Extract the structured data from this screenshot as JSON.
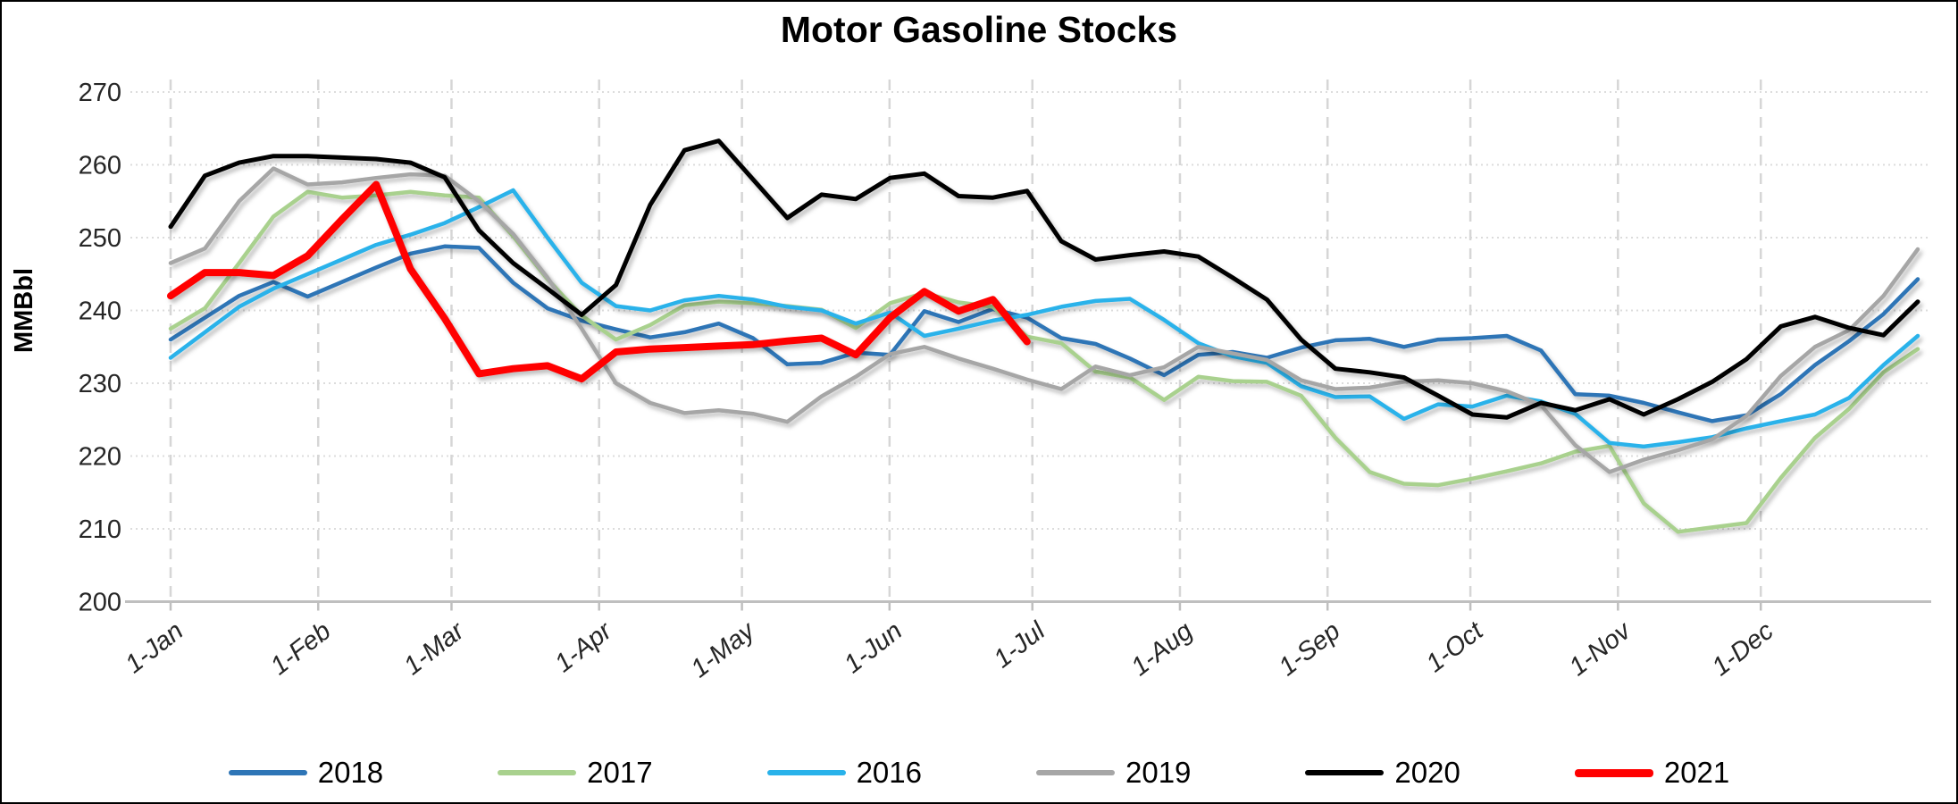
{
  "title": "Motor Gasoline Stocks",
  "y_axis": {
    "label": "MMBbl",
    "ticks": [
      270,
      260,
      250,
      240,
      230,
      220,
      210,
      200
    ],
    "min": 200,
    "max": 270
  },
  "x_axis": {
    "labels": [
      "1-Jan",
      "1-Feb",
      "1-Mar",
      "1-Apr",
      "1-May",
      "1-Jun",
      "1-Jul",
      "1-Aug",
      "1-Sep",
      "1-Oct",
      "1-Nov",
      "1-Dec"
    ]
  },
  "legend": {
    "items": [
      {
        "label": "2018",
        "color": "#2E75B6"
      },
      {
        "label": "2017",
        "color": "#A9D18E"
      },
      {
        "label": "2016",
        "color": "#29B2EA"
      },
      {
        "label": "2019",
        "color": "#A6A6A6"
      },
      {
        "label": "2020",
        "color": "#000000"
      },
      {
        "label": "2021",
        "color": "#FF0000"
      }
    ]
  },
  "chart_data": {
    "type": "line",
    "title": "Motor Gasoline Stocks",
    "xlabel": "",
    "ylabel": "MMBbl",
    "ylim": [
      200,
      270
    ],
    "x_unit": "weekly points from 1-Jan to 31-Dec",
    "grid": {
      "horizontal": "dotted",
      "vertical": "dashed"
    },
    "legend_position": "bottom",
    "series": [
      {
        "name": "2018",
        "color": "#2E75B6",
        "width": 4.5,
        "values": [
          236.0,
          239.0,
          242.0,
          243.9,
          241.9,
          243.9,
          245.9,
          247.8,
          248.8,
          248.6,
          243.8,
          240.3,
          238.6,
          237.4,
          236.3,
          237.0,
          238.2,
          236.2,
          232.6,
          232.8,
          234.2,
          233.9,
          239.9,
          238.4,
          240.2,
          239.0,
          236.2,
          235.4,
          233.4,
          231.1,
          233.9,
          234.3,
          233.5,
          234.9,
          235.9,
          236.1,
          235.0,
          236.0,
          236.2,
          236.5,
          234.5,
          228.5,
          228.3,
          227.3,
          226.0,
          224.8,
          225.6,
          228.5,
          232.5,
          235.8,
          239.5,
          244.3
        ]
      },
      {
        "name": "2017",
        "color": "#A9D18E",
        "width": 4.5,
        "values": [
          237.5,
          240.3,
          246.5,
          252.9,
          256.3,
          255.5,
          255.8,
          256.3,
          255.8,
          255.5,
          250.2,
          244.3,
          239.3,
          236.0,
          238.0,
          240.7,
          241.2,
          241.0,
          240.6,
          240.1,
          237.6,
          241.0,
          242.4,
          241.1,
          240.5,
          236.4,
          235.5,
          231.6,
          230.8,
          227.7,
          230.9,
          230.3,
          230.2,
          228.3,
          222.5,
          217.8,
          216.2,
          216.0,
          216.9,
          217.9,
          219.0,
          220.6,
          221.4,
          213.5,
          209.6,
          210.2,
          210.8,
          217.0,
          222.5,
          226.5,
          231.5,
          234.7
        ]
      },
      {
        "name": "2016",
        "color": "#29B2EA",
        "width": 4.5,
        "values": [
          233.5,
          237.0,
          240.5,
          243.0,
          245.0,
          247.0,
          249.0,
          250.4,
          252.0,
          254.2,
          256.5,
          250.0,
          243.8,
          240.6,
          240.0,
          241.4,
          242.0,
          241.5,
          240.5,
          240.0,
          238.2,
          239.7,
          236.5,
          237.5,
          238.6,
          239.4,
          240.5,
          241.3,
          241.6,
          238.7,
          235.5,
          233.7,
          232.8,
          229.6,
          228.1,
          228.2,
          225.1,
          227.1,
          226.8,
          228.3,
          227.5,
          225.8,
          221.8,
          221.3,
          221.9,
          222.6,
          223.8,
          224.8,
          225.7,
          228.0,
          232.5,
          236.5
        ]
      },
      {
        "name": "2019",
        "color": "#A6A6A6",
        "width": 4.5,
        "values": [
          246.5,
          248.5,
          255.0,
          259.5,
          257.3,
          257.6,
          258.2,
          258.7,
          258.5,
          255.0,
          250.5,
          244.5,
          237.5,
          230.0,
          227.3,
          225.9,
          226.3,
          225.8,
          224.7,
          228.2,
          230.9,
          234.0,
          235.0,
          233.4,
          232.0,
          230.5,
          229.2,
          232.3,
          231.1,
          232.2,
          235.0,
          234.1,
          233.2,
          230.4,
          229.2,
          229.4,
          230.2,
          230.4,
          230.0,
          228.9,
          227.0,
          221.5,
          217.8,
          219.5,
          220.8,
          222.3,
          225.5,
          231.0,
          235.0,
          237.3,
          242.0,
          248.4
        ]
      },
      {
        "name": "2020",
        "color": "#000000",
        "width": 5,
        "values": [
          251.5,
          258.5,
          260.3,
          261.2,
          261.2,
          261.0,
          260.8,
          260.3,
          258.3,
          251.0,
          246.5,
          243.0,
          239.4,
          243.5,
          254.5,
          262.0,
          263.3,
          258.0,
          252.7,
          255.9,
          255.3,
          258.2,
          258.8,
          255.7,
          255.5,
          256.4,
          249.5,
          247.0,
          247.6,
          248.1,
          247.4,
          244.5,
          241.5,
          236.0,
          232.0,
          231.5,
          230.8,
          228.3,
          225.7,
          225.3,
          227.3,
          226.3,
          227.8,
          225.7,
          227.8,
          230.2,
          233.3,
          237.8,
          239.1,
          237.6,
          236.6,
          241.2
        ]
      },
      {
        "name": "2021",
        "color": "#FF0000",
        "width": 8,
        "values": [
          242.0,
          245.2,
          245.2,
          244.8,
          247.5,
          252.5,
          257.3,
          245.7,
          238.9,
          231.3,
          232.0,
          232.4,
          230.6,
          234.3,
          234.7,
          234.9,
          235.1,
          235.3,
          235.8,
          236.2,
          233.9,
          239.0,
          242.6,
          239.9,
          241.5,
          235.7
        ]
      }
    ]
  }
}
